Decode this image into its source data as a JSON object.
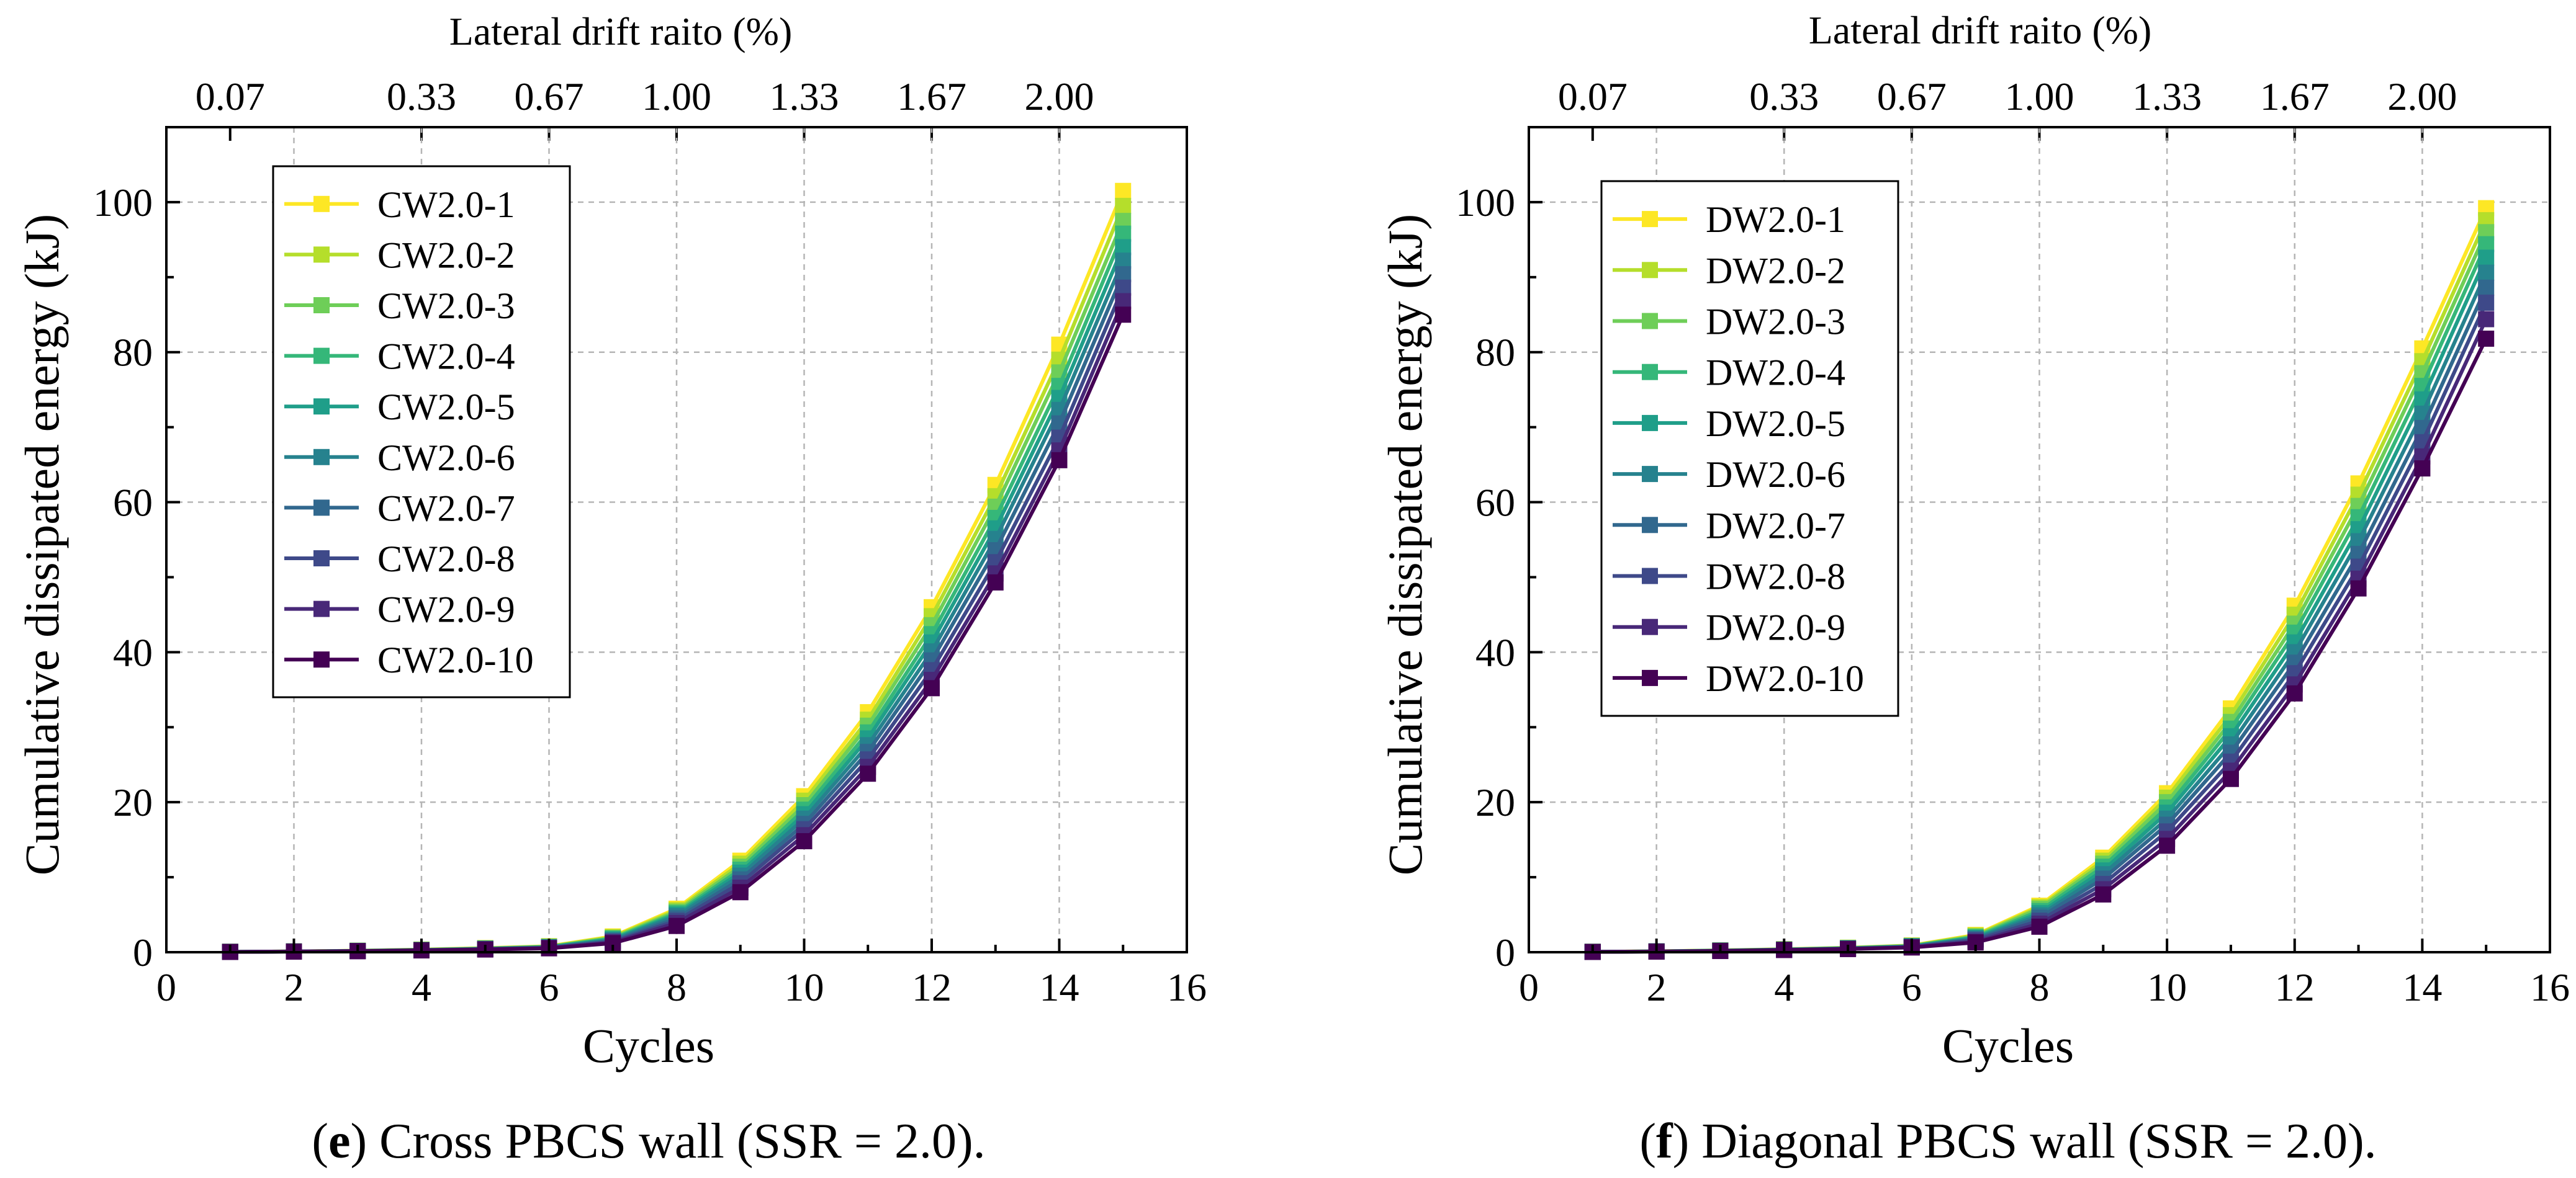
{
  "chart_data": [
    {
      "type": "line",
      "panel_letter": "e",
      "caption": "Cross PBCS wall (SSR = 2.0).",
      "xlabel": "Cycles",
      "ylabel": "Cumulative dissipated energy (kJ)",
      "top_axis_label": "Lateral drift raito (%)",
      "xlim": [
        0,
        16
      ],
      "ylim": [
        0,
        110
      ],
      "xticks": [
        0,
        2,
        4,
        6,
        8,
        10,
        12,
        14,
        16
      ],
      "xtick_labels": [
        "0",
        "2",
        "4",
        "6",
        "8",
        "10",
        "12",
        "14",
        "16"
      ],
      "yticks": [
        0,
        20,
        40,
        60,
        80,
        100
      ],
      "ytick_labels": [
        "0",
        "20",
        "40",
        "60",
        "80",
        "100"
      ],
      "top_ticks": [
        1,
        4,
        6,
        8,
        10,
        12,
        14
      ],
      "top_tick_labels": [
        "0.07",
        "0.33",
        "0.67",
        "1.00",
        "1.33",
        "1.67",
        "2.00"
      ],
      "grid": true,
      "legend_position": "upper-left",
      "x": [
        1,
        2,
        3,
        4,
        5,
        6,
        7,
        8,
        9,
        10,
        11,
        12,
        13,
        14,
        15
      ],
      "series": [
        {
          "name": "CW2.0-1",
          "color": "#fde725",
          "values": [
            0.05,
            0.1,
            0.2,
            0.35,
            0.55,
            0.8,
            2.1,
            5.8,
            12.2,
            20.8,
            32.0,
            46.0,
            62.3,
            81.0,
            101.5
          ]
        },
        {
          "name": "CW2.0-2",
          "color": "#b5de2b",
          "values": [
            0.05,
            0.1,
            0.2,
            0.33,
            0.52,
            0.76,
            2.0,
            5.6,
            11.8,
            20.2,
            31.0,
            44.8,
            60.8,
            79.0,
            99.5
          ]
        },
        {
          "name": "CW2.0-3",
          "color": "#6ece58",
          "values": [
            0.05,
            0.1,
            0.19,
            0.32,
            0.5,
            0.73,
            1.9,
            5.4,
            11.4,
            19.6,
            30.2,
            43.6,
            59.4,
            77.3,
            97.5
          ]
        },
        {
          "name": "CW2.0-4",
          "color": "#35b779",
          "values": [
            0.05,
            0.1,
            0.18,
            0.3,
            0.48,
            0.7,
            1.8,
            5.2,
            11.0,
            19.0,
            29.3,
            42.4,
            57.9,
            75.5,
            95.8
          ]
        },
        {
          "name": "CW2.0-5",
          "color": "#1f9e89",
          "values": [
            0.05,
            0.09,
            0.17,
            0.29,
            0.46,
            0.67,
            1.7,
            5.0,
            10.6,
            18.4,
            28.5,
            41.3,
            56.5,
            73.9,
            94.0
          ]
        },
        {
          "name": "CW2.0-6",
          "color": "#26828e",
          "values": [
            0.05,
            0.09,
            0.16,
            0.28,
            0.44,
            0.64,
            1.6,
            4.8,
            10.2,
            17.8,
            27.6,
            40.1,
            55.1,
            72.3,
            92.2
          ]
        },
        {
          "name": "CW2.0-7",
          "color": "#31688e",
          "values": [
            0.04,
            0.09,
            0.16,
            0.27,
            0.42,
            0.61,
            1.5,
            4.5,
            9.7,
            17.1,
            26.7,
            38.9,
            53.6,
            70.5,
            90.4
          ]
        },
        {
          "name": "CW2.0-8",
          "color": "#3e4989",
          "values": [
            0.04,
            0.08,
            0.15,
            0.26,
            0.4,
            0.58,
            1.4,
            4.2,
            9.2,
            16.4,
            25.7,
            37.6,
            52.0,
            68.6,
            88.6
          ]
        },
        {
          "name": "CW2.0-9",
          "color": "#482878",
          "values": [
            0.04,
            0.08,
            0.14,
            0.25,
            0.38,
            0.55,
            1.3,
            3.9,
            8.6,
            15.6,
            24.7,
            36.3,
            50.5,
            66.9,
            86.8
          ]
        },
        {
          "name": "CW2.0-10",
          "color": "#440154",
          "values": [
            0.04,
            0.08,
            0.14,
            0.24,
            0.36,
            0.52,
            1.2,
            3.5,
            8.0,
            14.8,
            23.8,
            35.2,
            49.3,
            65.6,
            85.0
          ]
        }
      ]
    },
    {
      "type": "line",
      "panel_letter": "f",
      "caption": "Diagonal PBCS wall (SSR = 2.0).",
      "xlabel": "Cycles",
      "ylabel": "Cumulative dissipated energy (kJ)",
      "top_axis_label": "Lateral drift raito (%)",
      "xlim": [
        0,
        16
      ],
      "ylim": [
        0,
        110
      ],
      "xticks": [
        0,
        2,
        4,
        6,
        8,
        10,
        12,
        14,
        16
      ],
      "xtick_labels": [
        "0",
        "2",
        "4",
        "6",
        "8",
        "10",
        "12",
        "14",
        "16"
      ],
      "yticks": [
        0,
        20,
        40,
        60,
        80,
        100
      ],
      "ytick_labels": [
        "0",
        "20",
        "40",
        "60",
        "80",
        "100"
      ],
      "top_ticks": [
        1,
        4,
        6,
        8,
        10,
        12,
        14
      ],
      "top_tick_labels": [
        "0.07",
        "0.33",
        "0.67",
        "1.00",
        "1.33",
        "1.67",
        "2.00"
      ],
      "grid": true,
      "legend_position": "upper-left",
      "x": [
        1,
        2,
        3,
        4,
        5,
        6,
        7,
        8,
        9,
        10,
        11,
        12,
        13,
        14,
        15
      ],
      "series": [
        {
          "name": "DW2.0-1",
          "color": "#fde725",
          "values": [
            0.05,
            0.12,
            0.25,
            0.4,
            0.6,
            0.9,
            2.3,
            6.2,
            12.6,
            21.2,
            32.5,
            46.2,
            62.5,
            80.5,
            99.2
          ]
        },
        {
          "name": "DW2.0-2",
          "color": "#b5de2b",
          "values": [
            0.05,
            0.11,
            0.24,
            0.38,
            0.58,
            0.87,
            2.2,
            6.0,
            12.2,
            20.6,
            31.6,
            45.0,
            61.0,
            78.8,
            97.6
          ]
        },
        {
          "name": "DW2.0-3",
          "color": "#6ece58",
          "values": [
            0.05,
            0.11,
            0.23,
            0.37,
            0.56,
            0.84,
            2.1,
            5.8,
            11.8,
            20.0,
            30.7,
            43.8,
            59.5,
            77.2,
            96.0
          ]
        },
        {
          "name": "DW2.0-4",
          "color": "#35b779",
          "values": [
            0.05,
            0.1,
            0.22,
            0.36,
            0.54,
            0.81,
            2.0,
            5.5,
            11.4,
            19.3,
            29.8,
            42.6,
            58.0,
            75.5,
            94.4
          ]
        },
        {
          "name": "DW2.0-5",
          "color": "#1f9e89",
          "values": [
            0.05,
            0.1,
            0.21,
            0.34,
            0.52,
            0.78,
            1.9,
            5.2,
            10.9,
            18.6,
            28.8,
            41.3,
            56.4,
            73.7,
            92.6
          ]
        },
        {
          "name": "DW2.0-6",
          "color": "#26828e",
          "values": [
            0.05,
            0.1,
            0.2,
            0.33,
            0.5,
            0.75,
            1.8,
            4.9,
            10.4,
            17.8,
            27.7,
            40.0,
            54.8,
            71.8,
            90.6
          ]
        },
        {
          "name": "DW2.0-7",
          "color": "#31688e",
          "values": [
            0.04,
            0.09,
            0.19,
            0.32,
            0.48,
            0.72,
            1.7,
            4.6,
            9.8,
            17.0,
            26.6,
            38.6,
            53.1,
            69.9,
            88.6
          ]
        },
        {
          "name": "DW2.0-8",
          "color": "#3e4989",
          "values": [
            0.04,
            0.09,
            0.18,
            0.31,
            0.46,
            0.69,
            1.6,
            4.2,
            9.1,
            16.1,
            25.4,
            37.2,
            51.4,
            68.0,
            86.6
          ]
        },
        {
          "name": "DW2.0-9",
          "color": "#482878",
          "values": [
            0.04,
            0.08,
            0.17,
            0.3,
            0.44,
            0.66,
            1.4,
            3.8,
            8.4,
            15.1,
            24.2,
            35.7,
            49.8,
            66.1,
            84.4
          ]
        },
        {
          "name": "DW2.0-10",
          "color": "#440154",
          "values": [
            0.04,
            0.08,
            0.16,
            0.29,
            0.42,
            0.63,
            1.3,
            3.4,
            7.7,
            14.2,
            23.1,
            34.5,
            48.5,
            64.5,
            81.8
          ]
        }
      ]
    }
  ]
}
